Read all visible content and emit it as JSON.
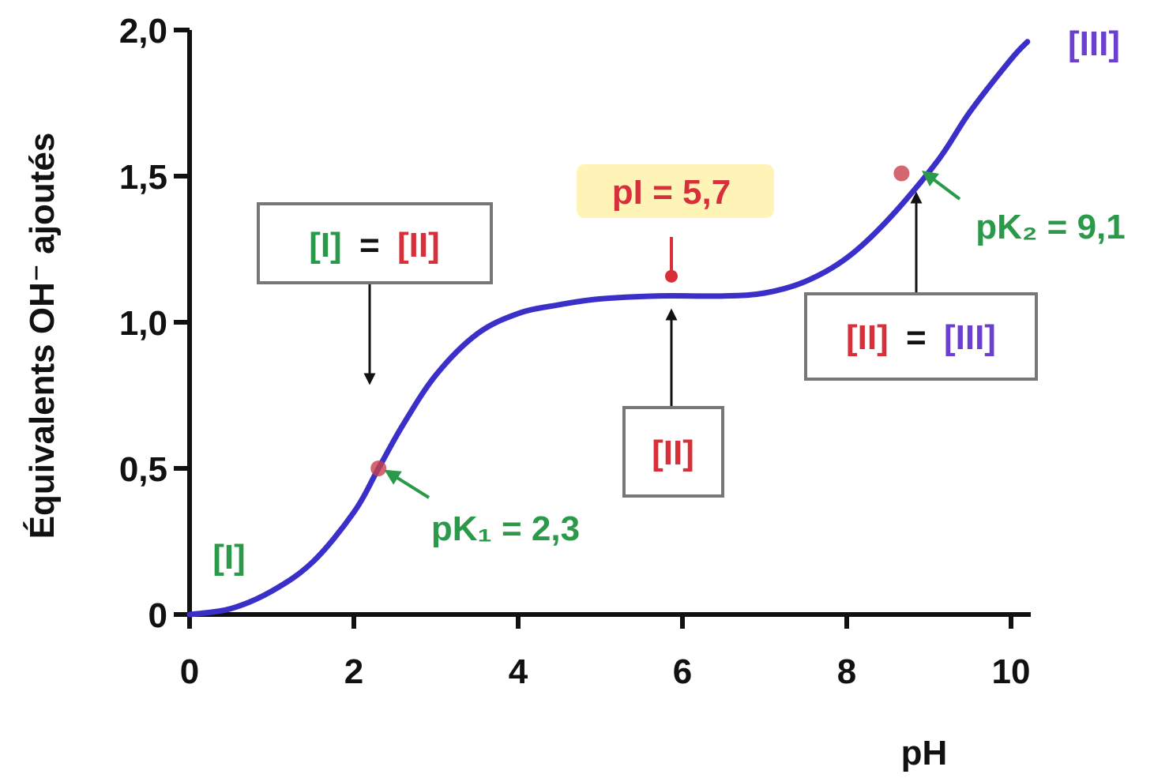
{
  "chart_data": {
    "type": "line",
    "xlabel": "pH",
    "ylabel": "Équivalents OH⁻ ajoutés",
    "xlim": [
      0,
      10.3
    ],
    "ylim": [
      0,
      2.0
    ],
    "x_ticks": [
      0,
      2,
      4,
      6,
      8,
      10
    ],
    "x_tick_labels": [
      "0",
      "2",
      "4",
      "6",
      "8",
      "10"
    ],
    "y_ticks": [
      0,
      0.5,
      1.0,
      1.5,
      2.0
    ],
    "y_tick_labels": [
      "0",
      "0,5",
      "1,0",
      "1,5",
      "2,0"
    ],
    "pK1": 2.3,
    "pK2": 9.1,
    "series": [
      {
        "color": "#3a2fc8",
        "x": [
          0,
          0.5,
          1.0,
          1.5,
          2.0,
          2.3,
          2.6,
          3.0,
          3.5,
          4.0,
          4.5,
          5.0,
          5.7,
          6.5,
          7.0,
          7.5,
          8.0,
          8.5,
          9.1,
          9.5,
          10.0,
          10.2
        ],
        "y": [
          0.0,
          0.02,
          0.08,
          0.18,
          0.35,
          0.5,
          0.65,
          0.82,
          0.96,
          1.03,
          1.06,
          1.08,
          1.09,
          1.09,
          1.1,
          1.14,
          1.22,
          1.35,
          1.55,
          1.72,
          1.9,
          1.96
        ]
      }
    ],
    "annotations": {
      "start_label": "[I]",
      "end_label": "[III]",
      "pk1_label": "pK₁ = 2,3",
      "pk2_label": "pK₂ = 9,1",
      "pi_label": "pI = 5,7",
      "box_I_eq_II": {
        "left": "[I]",
        "eq": "=",
        "right": "[II]"
      },
      "box_II": "[II]",
      "box_II_eq_III": {
        "left": "[II]",
        "eq": "=",
        "right": "[III]"
      }
    },
    "colors": {
      "curve": "#3a2fc8",
      "green": "#2a9a4a",
      "red": "#d8303a",
      "purple": "#6b3fd0",
      "pi_highlight": "#fff3b0",
      "marker": "#c8404a"
    }
  }
}
